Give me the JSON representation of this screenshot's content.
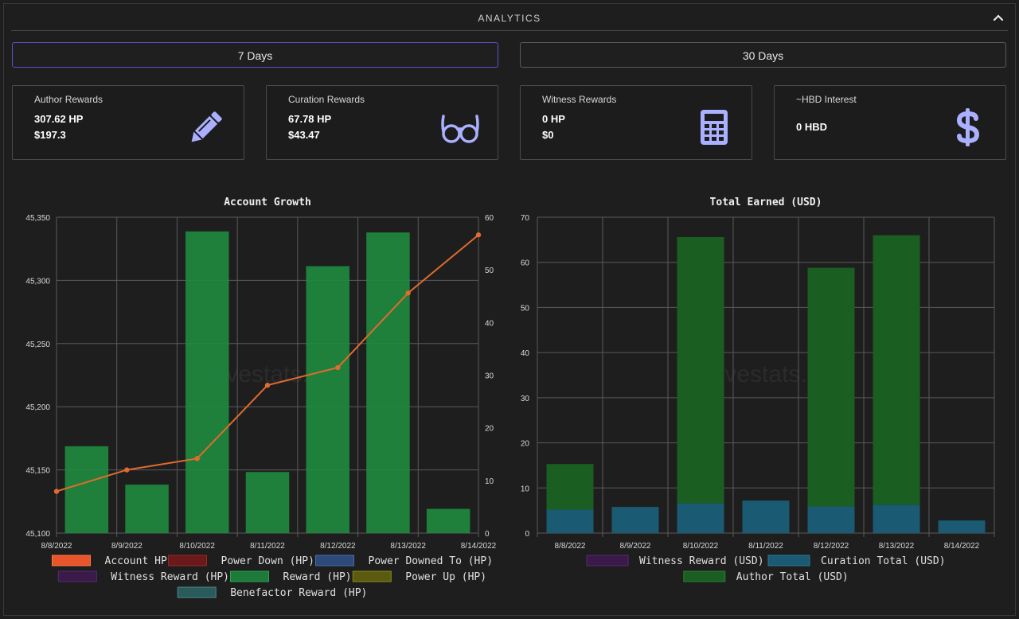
{
  "header": {
    "title": "ANALYTICS"
  },
  "range_buttons": {
    "days7": "7 Days",
    "days30": "30 Days"
  },
  "cards": [
    {
      "title": "Author Rewards",
      "v1": "307.62 HP",
      "v2": "$197.3",
      "icon": "pencil-icon"
    },
    {
      "title": "Curation Rewards",
      "v1": "67.78 HP",
      "v2": "$43.47",
      "icon": "glasses-icon"
    },
    {
      "title": "Witness Rewards",
      "v1": "0 HP",
      "v2": "$0",
      "icon": "calculator-icon"
    },
    {
      "title": "~HBD Interest",
      "v1": "0 HBD",
      "icon": "dollar-icon"
    }
  ],
  "colors": {
    "accent": "#5a52c8",
    "icon": "#aab0ff",
    "grid": "#5a5a5a",
    "line": "#e06b2e"
  },
  "chart_data": [
    {
      "type": "bar",
      "title": "Account Growth",
      "watermark": "hivestats.io",
      "categories": [
        "8/8/2022",
        "8/9/2022",
        "8/10/2022",
        "8/11/2022",
        "8/12/2022",
        "8/13/2022",
        "8/14/2022"
      ],
      "ylim_left": [
        45100,
        45350
      ],
      "yticks_left": [
        45100,
        45150,
        45200,
        45250,
        45300,
        45350
      ],
      "ytick_labels_left": [
        "45,100",
        "45,150",
        "45,200",
        "45,250",
        "45,300",
        "45,350"
      ],
      "ylim_right": [
        0,
        60
      ],
      "yticks_right": [
        0,
        10,
        20,
        30,
        40,
        50,
        60
      ],
      "series": [
        {
          "name": "Account HP",
          "type": "line",
          "axis": "left",
          "color": "#e06b2e",
          "values": [
            45133,
            45150,
            45159,
            45217,
            45231,
            45290,
            45336
          ]
        },
        {
          "name": "Reward (HP)",
          "type": "bar",
          "axis": "right",
          "color": "#1e8b3e",
          "values": [
            16.5,
            9.2,
            57.3,
            11.6,
            50.7,
            57.1,
            4.6
          ]
        }
      ],
      "legend": [
        {
          "label": "Account HP",
          "color": "#e8552a",
          "border": "#ff7a45"
        },
        {
          "label": "Power Down (HP)",
          "color": "#6a1a1a",
          "border": "#9a2626"
        },
        {
          "label": "Power Downed To (HP)",
          "color": "#2d4a7a",
          "border": "#4a6ea8"
        },
        {
          "label": "Witness Reward (HP)",
          "color": "#3a1a4a",
          "border": "#5a2a6a"
        },
        {
          "label": "Reward (HP)",
          "color": "#1e7a3a",
          "border": "#2aa04e"
        },
        {
          "label": "Power Up (HP)",
          "color": "#5a5a10",
          "border": "#8a8a1a"
        },
        {
          "label": "Benefactor Reward (HP)",
          "color": "#2a5a5a",
          "border": "#4a8a8a"
        }
      ]
    },
    {
      "type": "bar",
      "title": "Total Earned (USD)",
      "watermark": "hivestats.io",
      "categories": [
        "8/8/2022",
        "8/9/2022",
        "8/10/2022",
        "8/11/2022",
        "8/12/2022",
        "8/13/2022",
        "8/14/2022"
      ],
      "ylim": [
        0,
        70
      ],
      "yticks": [
        0,
        10,
        20,
        30,
        40,
        50,
        60,
        70
      ],
      "stacked": true,
      "series": [
        {
          "name": "Witness Reward (USD)",
          "color": "#3a1a4a",
          "values": [
            0,
            0,
            0,
            0,
            0,
            0,
            0
          ]
        },
        {
          "name": "Curation Total (USD)",
          "color": "#1a5a72",
          "values": [
            5.2,
            5.8,
            6.6,
            7.2,
            5.9,
            6.3,
            2.8
          ]
        },
        {
          "name": "Author Total (USD)",
          "color": "#1a5e22",
          "values": [
            10.1,
            0,
            59.0,
            0,
            52.9,
            59.7,
            0
          ]
        }
      ],
      "legend": [
        {
          "label": "Witness Reward (USD)",
          "color": "#3a1a4a",
          "border": "#5a2a6a"
        },
        {
          "label": "Curation Total (USD)",
          "color": "#1a5a72",
          "border": "#2a7a96"
        },
        {
          "label": "Author Total (USD)",
          "color": "#1a5e22",
          "border": "#2a7e32"
        }
      ]
    }
  ]
}
